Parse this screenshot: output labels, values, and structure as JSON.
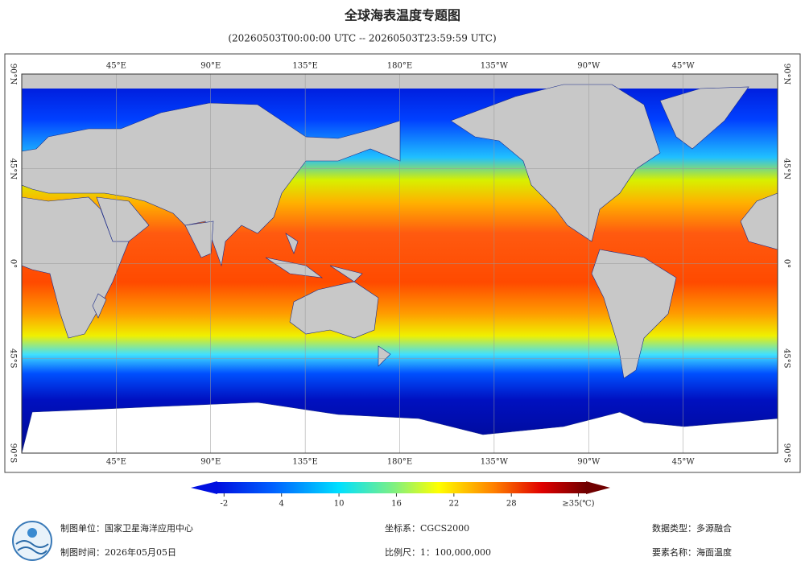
{
  "title": "全球海表温度专题图",
  "subtitle": "(20260503T00:00:00 UTC -- 20260503T23:59:59 UTC)",
  "map": {
    "lon_labels": [
      "45°E",
      "90°E",
      "135°E",
      "180°E",
      "135°W",
      "90°W",
      "45°W"
    ],
    "lat_labels": [
      "90°N",
      "45°N",
      "0°",
      "45°S",
      "90°S"
    ]
  },
  "colorbar": {
    "range": [
      -2.7,
      35.8
    ],
    "ticks": [
      -2,
      4,
      10,
      16,
      22,
      28,
      {
        "value": 35,
        "label": "≥35(℃)"
      }
    ]
  },
  "footer": {
    "producer": "制图单位：国家卫星海洋应用中心",
    "date": "制图时间：2026年05月05日",
    "crs": "坐标系：CGCS2000",
    "scale": "比例尺：1：100,000,000",
    "data_type": "数据类型：多源融合",
    "element": "要素名称：海面温度"
  }
}
